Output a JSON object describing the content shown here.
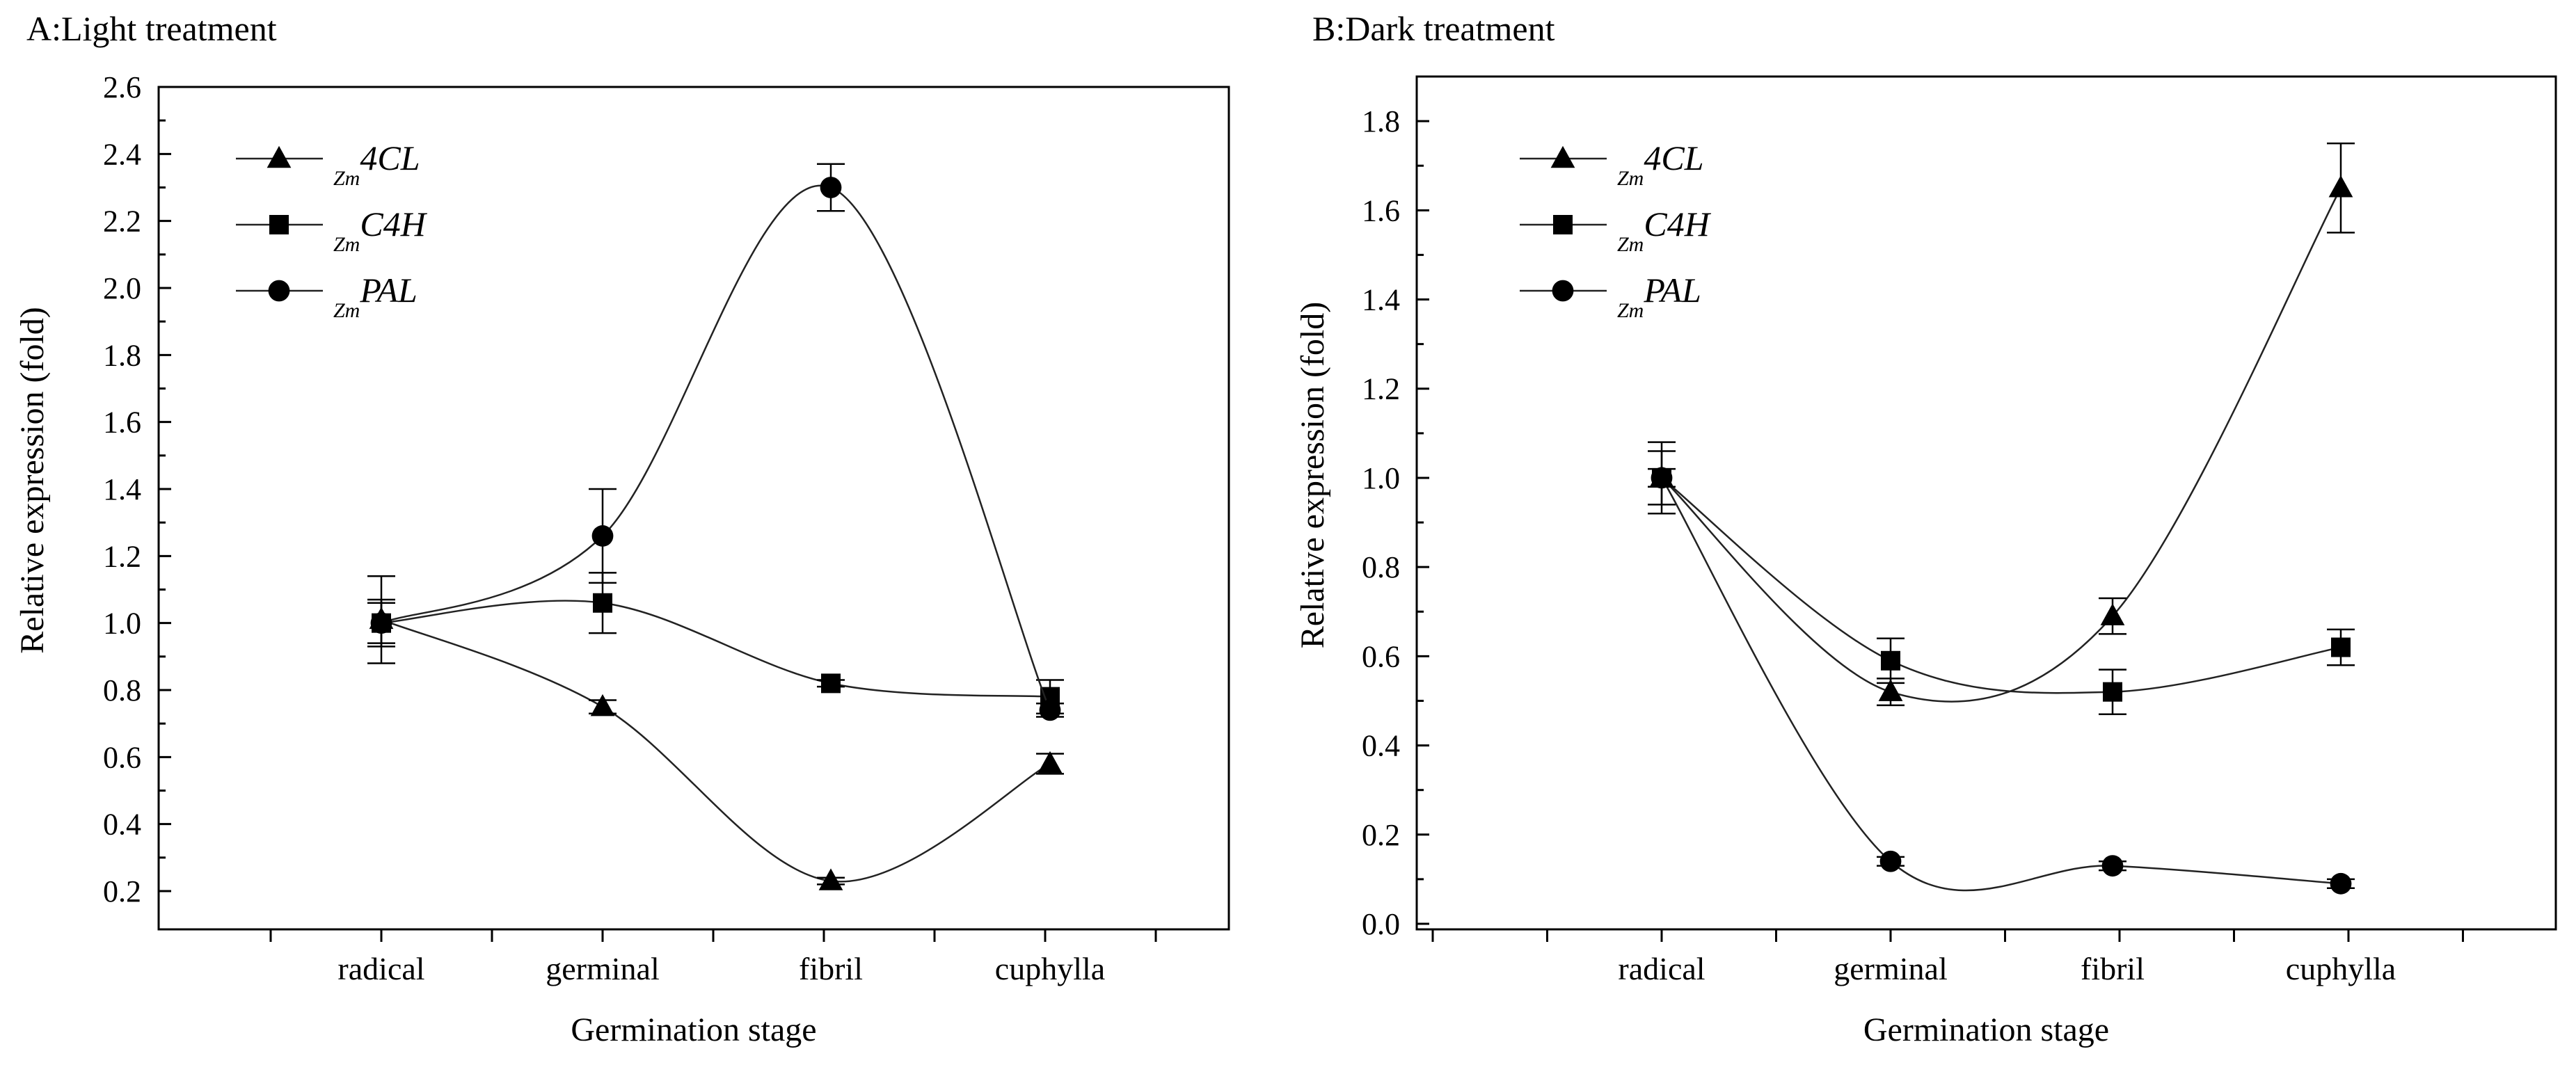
{
  "chart_data": [
    {
      "id": "A",
      "type": "line",
      "title": "A:Light treatment",
      "xlabel": "Germination stage",
      "ylabel": "Relative expression (fold)",
      "categories": [
        "radical",
        "germinal",
        "fibril",
        "cuphylla"
      ],
      "ylim": [
        0.2,
        2.6
      ],
      "ytick_step": 0.2,
      "yticks": [
        "0.2",
        "0.4",
        "0.6",
        "0.8",
        "1.0",
        "1.2",
        "1.4",
        "1.6",
        "1.8",
        "2.0",
        "2.2",
        "2.4",
        "2.6"
      ],
      "legend_position": "top-left",
      "series": [
        {
          "name_prefix": "Zm",
          "name": "4CL",
          "marker": "triangle",
          "values": [
            1.01,
            0.75,
            0.23,
            0.58
          ],
          "errors": [
            0.13,
            0.02,
            0.01,
            0.03
          ]
        },
        {
          "name_prefix": "Zm",
          "name": "C4H",
          "marker": "square",
          "values": [
            1.0,
            1.06,
            0.82,
            0.78
          ],
          "errors": [
            0.07,
            0.09,
            0.01,
            0.05
          ]
        },
        {
          "name_prefix": "Zm",
          "name": "PAL",
          "marker": "circle",
          "values": [
            1.0,
            1.26,
            2.3,
            0.74
          ],
          "errors": [
            0.06,
            0.14,
            0.07,
            0.02
          ]
        }
      ]
    },
    {
      "id": "B",
      "type": "line",
      "title": "B:Dark treatment",
      "xlabel": "Germination stage",
      "ylabel": "Relative expression (fold)",
      "categories": [
        "radical",
        "germinal",
        "fibril",
        "cuphylla"
      ],
      "ylim": [
        0.0,
        1.9
      ],
      "ytick_step": 0.2,
      "yticks": [
        "0.0",
        "0.2",
        "0.4",
        "0.6",
        "0.8",
        "1.0",
        "1.2",
        "1.4",
        "1.6",
        "1.8"
      ],
      "legend_position": "top-left",
      "series": [
        {
          "name_prefix": "Zm",
          "name": "4CL",
          "marker": "triangle",
          "values": [
            1.0,
            0.52,
            0.69,
            1.65
          ],
          "errors": [
            0.08,
            0.03,
            0.04,
            0.1
          ]
        },
        {
          "name_prefix": "Zm",
          "name": "C4H",
          "marker": "square",
          "values": [
            1.0,
            0.59,
            0.52,
            0.62
          ],
          "errors": [
            0.06,
            0.05,
            0.05,
            0.04
          ]
        },
        {
          "name_prefix": "Zm",
          "name": "PAL",
          "marker": "circle",
          "values": [
            1.0,
            0.14,
            0.13,
            0.09
          ],
          "errors": [
            0.02,
            0.01,
            0.01,
            0.01
          ]
        }
      ]
    }
  ]
}
